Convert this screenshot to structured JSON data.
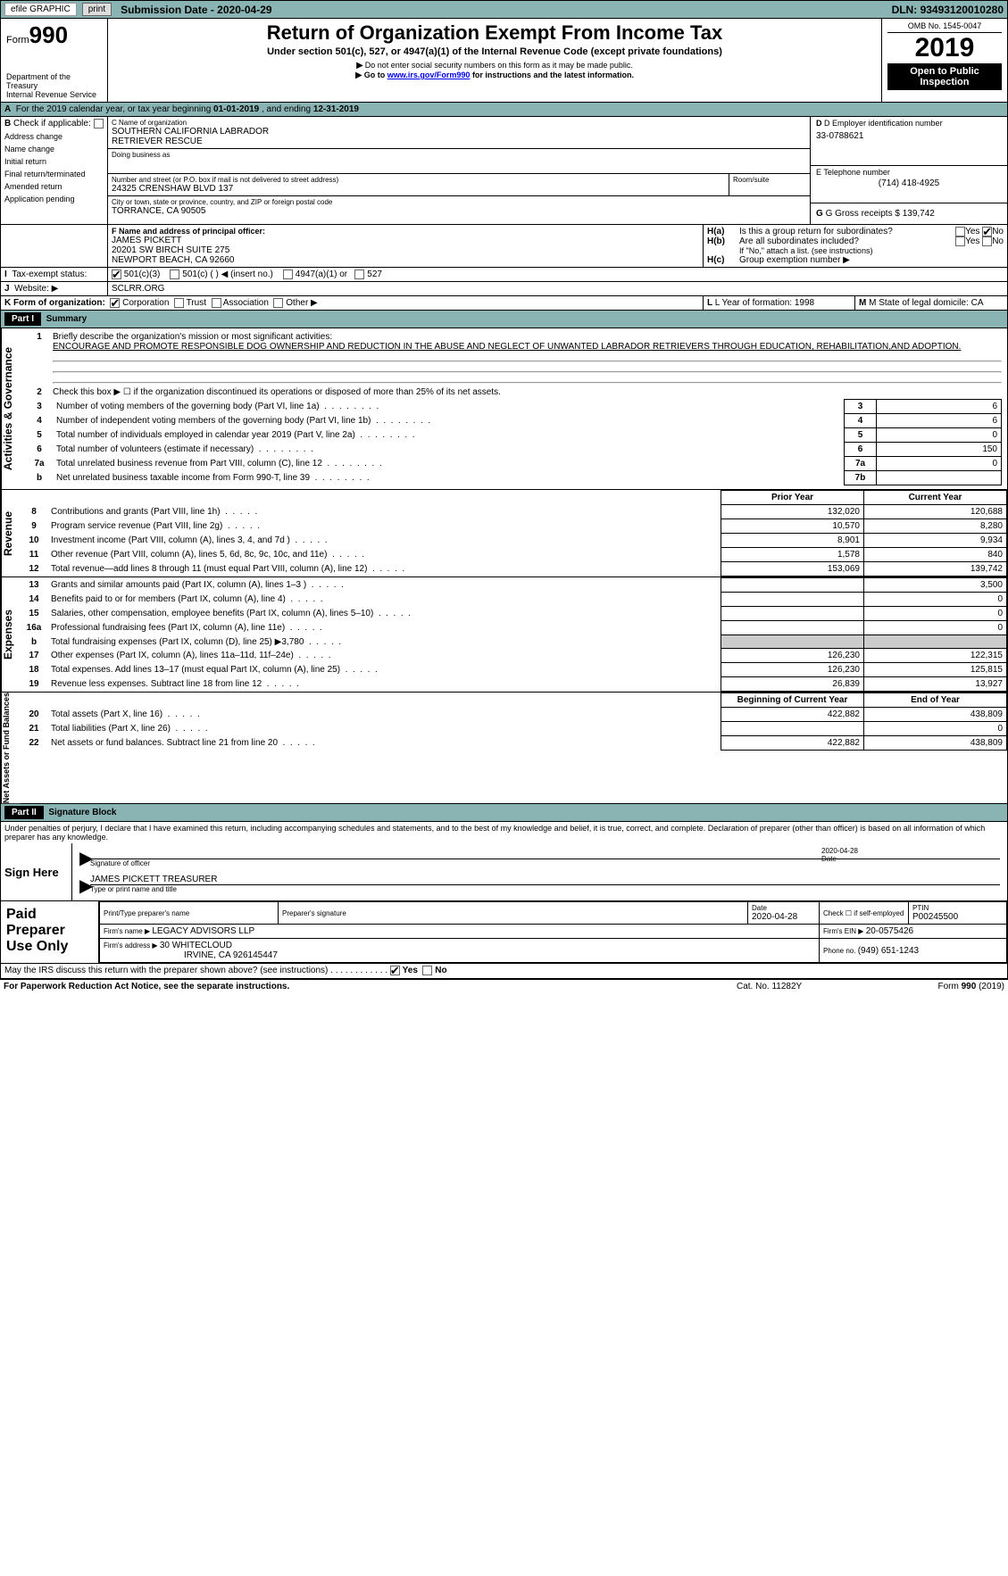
{
  "topbar": {
    "efile": "efile GRAPHIC",
    "print": "print",
    "submission_label": "Submission Date - ",
    "submission_date": "2020-04-29",
    "dln_label": "DLN: ",
    "dln": "93493120010280"
  },
  "hdr": {
    "form_prefix": "Form",
    "form_number": "990",
    "dept": "Department of the Treasury",
    "irs": "Internal Revenue Service",
    "title": "Return of Organization Exempt From Income Tax",
    "subtitle": "Under section 501(c), 527, or 4947(a)(1) of the Internal Revenue Code (except private foundations)",
    "note1": "Do not enter social security numbers on this form as it may be made public.",
    "note2_pre": "Go to ",
    "note2_link": "www.irs.gov/Form990",
    "note2_post": " for instructions and the latest information.",
    "omb": "OMB No. 1545-0047",
    "year": "2019",
    "open": "Open to Public Inspection"
  },
  "a": {
    "text": "For the 2019 calendar year, or tax year beginning ",
    "begin": "01-01-2019",
    "mid": " , and ending ",
    "end": "12-31-2019"
  },
  "b": {
    "label": "Check if applicable:",
    "items": [
      "Address change",
      "Name change",
      "Initial return",
      "Final return/terminated",
      "Amended return",
      "Application pending"
    ]
  },
  "c": {
    "name_label": "C Name of organization",
    "name1": "SOUTHERN CALIFORNIA LABRADOR",
    "name2": "RETRIEVER RESCUE",
    "dba": "Doing business as",
    "street_label": "Number and street (or P.O. box if mail is not delivered to street address)",
    "street": "24325 CRENSHAW BLVD 137",
    "room_label": "Room/suite",
    "city_label": "City or town, state or province, country, and ZIP or foreign postal code",
    "city": "TORRANCE, CA  90505"
  },
  "d": {
    "label": "D Employer identification number",
    "value": "33-0788621"
  },
  "e": {
    "label": "E Telephone number",
    "value": "(714) 418-4925"
  },
  "g": {
    "label": "G Gross receipts $ ",
    "value": "139,742"
  },
  "f": {
    "label": "F  Name and address of principal officer:",
    "name": "JAMES PICKETT",
    "addr1": "20201 SW BIRCH SUITE 275",
    "addr2": "NEWPORT BEACH, CA  92660"
  },
  "h": {
    "a": "Is this a group return for subordinates?",
    "b": "Are all subordinates included?",
    "b_note": "If \"No,\" attach a list. (see instructions)",
    "c": "Group exemption number ▶",
    "yes": "Yes",
    "no": "No"
  },
  "i": {
    "label": "Tax-exempt status:",
    "o1": "501(c)(3)",
    "o2": "501(c) (   ) ◀ (insert no.)",
    "o3": "4947(a)(1) or",
    "o4": "527"
  },
  "j": {
    "label": "Website: ▶",
    "value": "SCLRR.ORG"
  },
  "k": {
    "label": "K Form of organization:",
    "o1": "Corporation",
    "o2": "Trust",
    "o3": "Association",
    "o4": "Other ▶"
  },
  "l": {
    "label": "L Year of formation: ",
    "value": "1998"
  },
  "m": {
    "label": "M State of legal domicile: ",
    "value": "CA"
  },
  "part1": {
    "label": "Part I",
    "title": "Summary",
    "l1_label": "Briefly describe the organization's mission or most significant activities:",
    "l1_text": "ENCOURAGE AND PROMOTE RESPONSIBLE DOG OWNERSHIP AND REDUCTION IN THE ABUSE AND NEGLECT OF UNWANTED LABRADOR RETRIEVERS THROUGH EDUCATION, REHABILITATION,AND ADOPTION.",
    "l2": "Check this box ▶ ☐ if the organization discontinued its operations or disposed of more than 25% of its net assets.",
    "lines_ag": [
      {
        "n": "3",
        "t": "Number of voting members of the governing body (Part VI, line 1a)",
        "b": "3",
        "v": "6"
      },
      {
        "n": "4",
        "t": "Number of independent voting members of the governing body (Part VI, line 1b)",
        "b": "4",
        "v": "6"
      },
      {
        "n": "5",
        "t": "Total number of individuals employed in calendar year 2019 (Part V, line 2a)",
        "b": "5",
        "v": "0"
      },
      {
        "n": "6",
        "t": "Total number of volunteers (estimate if necessary)",
        "b": "6",
        "v": "150"
      },
      {
        "n": "7a",
        "t": "Total unrelated business revenue from Part VIII, column (C), line 12",
        "b": "7a",
        "v": "0"
      },
      {
        "n": "b",
        "t": "Net unrelated business taxable income from Form 990-T, line 39",
        "b": "7b",
        "v": ""
      }
    ],
    "prior": "Prior Year",
    "current": "Current Year",
    "rev": [
      {
        "n": "8",
        "t": "Contributions and grants (Part VIII, line 1h)",
        "p": "132,020",
        "c": "120,688"
      },
      {
        "n": "9",
        "t": "Program service revenue (Part VIII, line 2g)",
        "p": "10,570",
        "c": "8,280"
      },
      {
        "n": "10",
        "t": "Investment income (Part VIII, column (A), lines 3, 4, and 7d )",
        "p": "8,901",
        "c": "9,934"
      },
      {
        "n": "11",
        "t": "Other revenue (Part VIII, column (A), lines 5, 6d, 8c, 9c, 10c, and 11e)",
        "p": "1,578",
        "c": "840"
      },
      {
        "n": "12",
        "t": "Total revenue—add lines 8 through 11 (must equal Part VIII, column (A), line 12)",
        "p": "153,069",
        "c": "139,742"
      }
    ],
    "exp": [
      {
        "n": "13",
        "t": "Grants and similar amounts paid (Part IX, column (A), lines 1–3 )",
        "p": "",
        "c": "3,500"
      },
      {
        "n": "14",
        "t": "Benefits paid to or for members (Part IX, column (A), line 4)",
        "p": "",
        "c": "0"
      },
      {
        "n": "15",
        "t": "Salaries, other compensation, employee benefits (Part IX, column (A), lines 5–10)",
        "p": "",
        "c": "0"
      },
      {
        "n": "16a",
        "t": "Professional fundraising fees (Part IX, column (A), line 11e)",
        "p": "",
        "c": "0"
      },
      {
        "n": "b",
        "t": "Total fundraising expenses (Part IX, column (D), line 25) ▶3,780",
        "p": "GRAY",
        "c": "GRAY"
      },
      {
        "n": "17",
        "t": "Other expenses (Part IX, column (A), lines 11a–11d, 11f–24e)",
        "p": "126,230",
        "c": "122,315"
      },
      {
        "n": "18",
        "t": "Total expenses. Add lines 13–17 (must equal Part IX, column (A), line 25)",
        "p": "126,230",
        "c": "125,815"
      },
      {
        "n": "19",
        "t": "Revenue less expenses. Subtract line 18 from line 12",
        "p": "26,839",
        "c": "13,927"
      }
    ],
    "beg": "Beginning of Current Year",
    "end": "End of Year",
    "net": [
      {
        "n": "20",
        "t": "Total assets (Part X, line 16)",
        "p": "422,882",
        "c": "438,809"
      },
      {
        "n": "21",
        "t": "Total liabilities (Part X, line 26)",
        "p": "",
        "c": "0"
      },
      {
        "n": "22",
        "t": "Net assets or fund balances. Subtract line 21 from line 20",
        "p": "422,882",
        "c": "438,809"
      }
    ],
    "side_ag": "Activities & Governance",
    "side_rev": "Revenue",
    "side_exp": "Expenses",
    "side_net": "Net Assets or Fund Balances"
  },
  "part2": {
    "label": "Part II",
    "title": "Signature Block",
    "decl": "Under penalties of perjury, I declare that I have examined this return, including accompanying schedules and statements, and to the best of my knowledge and belief, it is true, correct, and complete. Declaration of preparer (other than officer) is based on all information of which preparer has any knowledge.",
    "signhere": "Sign Here",
    "sigoff": "Signature of officer",
    "sigdate": "2020-04-28",
    "date": "Date",
    "name_title": "JAMES PICKETT  TREASURER",
    "type_name": "Type or print name and title",
    "paid": "Paid Preparer Use Only",
    "pp_name_l": "Print/Type preparer's name",
    "pp_sig_l": "Preparer's signature",
    "pp_date_l": "Date",
    "pp_date": "2020-04-28",
    "pp_check": "Check ☐ if self-employed",
    "ptin_l": "PTIN",
    "ptin": "P00245500",
    "firm_name_l": "Firm's name   ▶ ",
    "firm_name": "LEGACY ADVISORS LLP",
    "firm_ein_l": "Firm's EIN ▶ ",
    "firm_ein": "20-0575426",
    "firm_addr_l": "Firm's address ▶ ",
    "firm_addr1": "30 WHITECLOUD",
    "firm_addr2": "IRVINE, CA  926145447",
    "firm_phone_l": "Phone no. ",
    "firm_phone": "(949) 651-1243",
    "discuss": "May the IRS discuss this return with the preparer shown above? (see instructions)",
    "yes": "Yes",
    "no": "No"
  },
  "footer": {
    "pra": "For Paperwork Reduction Act Notice, see the separate instructions.",
    "cat": "Cat. No. 11282Y",
    "form": "Form 990 (2019)"
  }
}
